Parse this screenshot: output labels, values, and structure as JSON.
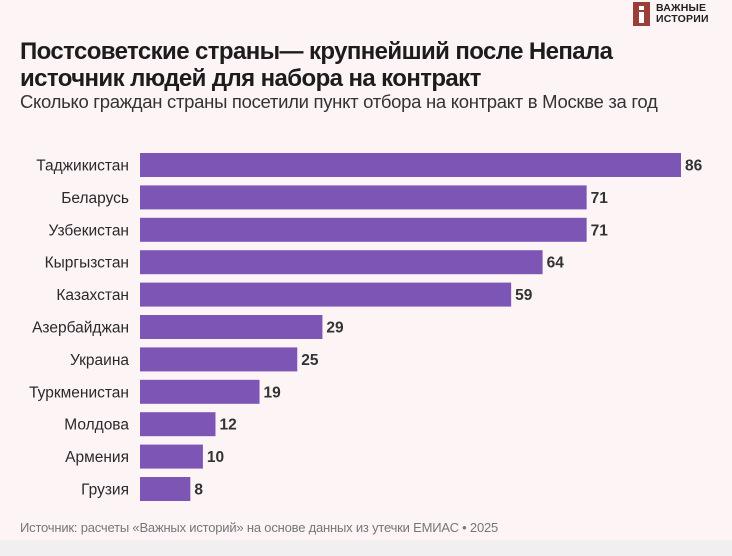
{
  "brand": {
    "line1": "ВАЖНЫЕ",
    "line2": "ИСТОРИИ",
    "logo_letter": "i",
    "color": "#9a3f38"
  },
  "title": "Постсоветские страны— крупнейший после Непала источник людей для набора на контракт",
  "subtitle": "Сколько граждан страны посетили пункт отбора на контракт в Москве за год",
  "source": "Источник: расчеты «Важных историй» на основе данных из утечки ЕМИАС • 2025",
  "chart_data": {
    "type": "bar",
    "orientation": "horizontal",
    "title": "Постсоветские страны— крупнейший после Непала источник людей для набора на контракт",
    "subtitle": "Сколько граждан страны посетили пункт отбора на контракт в Москве за год",
    "xlabel": "",
    "ylabel": "",
    "categories": [
      "Таджикистан",
      "Беларусь",
      "Узбекистан",
      "Кыргызстан",
      "Казахстан",
      "Азербайджан",
      "Украина",
      "Туркменистан",
      "Молдова",
      "Армения",
      "Грузия"
    ],
    "values": [
      86,
      71,
      71,
      64,
      59,
      29,
      25,
      19,
      12,
      10,
      8
    ],
    "xlim": [
      0,
      86
    ],
    "grid": false,
    "data_labels": true,
    "bar_color": "#7d56b5",
    "label_color": "#333333"
  }
}
